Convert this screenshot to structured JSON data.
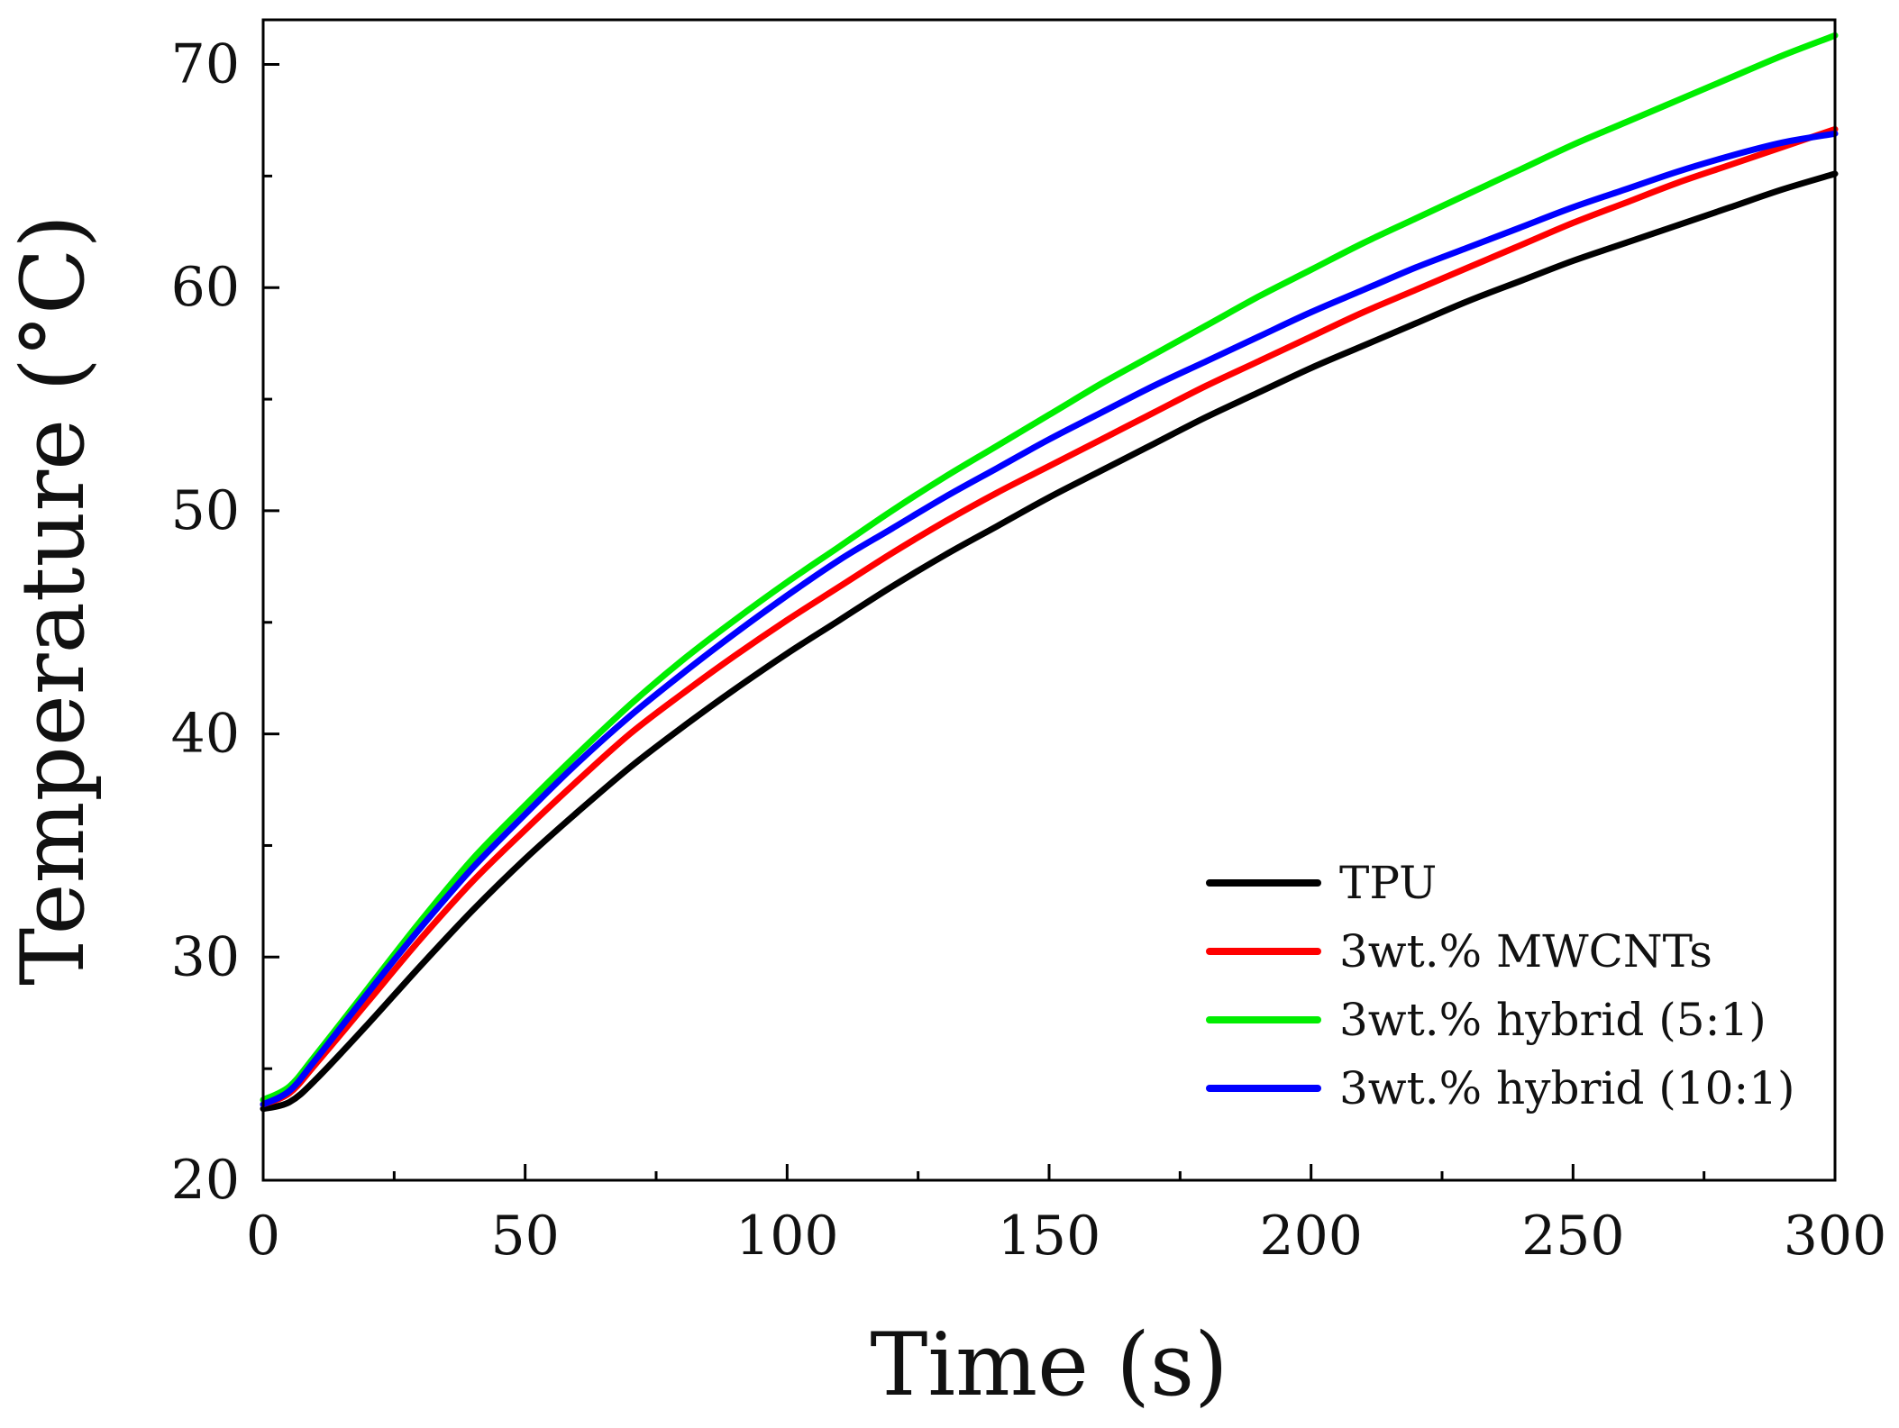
{
  "chart_data": {
    "type": "line",
    "title": "",
    "xlabel": "Time (s)",
    "ylabel": "Temperature (°C)",
    "xlim": [
      0,
      300
    ],
    "ylim": [
      20,
      72
    ],
    "xticks": [
      0,
      50,
      100,
      150,
      200,
      250,
      300
    ],
    "xtick_labels": [
      "0",
      "50",
      "100",
      "150",
      "200",
      "250",
      "300"
    ],
    "yticks": [
      20,
      30,
      40,
      50,
      60,
      70
    ],
    "ytick_labels": [
      "20",
      "30",
      "40",
      "50",
      "60",
      "70"
    ],
    "grid": false,
    "legend_position": "bottom-right",
    "x": [
      0,
      5,
      10,
      20,
      30,
      40,
      50,
      60,
      70,
      80,
      90,
      100,
      110,
      120,
      130,
      140,
      150,
      160,
      170,
      180,
      190,
      200,
      210,
      220,
      230,
      240,
      250,
      260,
      270,
      280,
      290,
      300
    ],
    "series": [
      {
        "name": "TPU",
        "color": "#000000",
        "values": [
          23.2,
          23.5,
          24.5,
          27.0,
          29.6,
          32.1,
          34.4,
          36.5,
          38.5,
          40.3,
          42.0,
          43.6,
          45.1,
          46.6,
          48.0,
          49.3,
          50.6,
          51.8,
          53.0,
          54.2,
          55.3,
          56.4,
          57.4,
          58.4,
          59.4,
          60.3,
          61.2,
          62.0,
          62.8,
          63.6,
          64.4,
          65.1
        ]
      },
      {
        "name": "3wt.% MWCNTs",
        "color": "#ff0000",
        "values": [
          23.4,
          23.9,
          25.2,
          28.0,
          30.8,
          33.4,
          35.7,
          37.9,
          40.0,
          41.8,
          43.5,
          45.1,
          46.6,
          48.1,
          49.5,
          50.8,
          52.0,
          53.2,
          54.4,
          55.6,
          56.7,
          57.8,
          58.9,
          59.9,
          60.9,
          61.9,
          62.9,
          63.8,
          64.7,
          65.5,
          66.3,
          67.1
        ]
      },
      {
        "name": "3wt.% hybrid (5:1)",
        "color": "#00ee00",
        "values": [
          23.6,
          24.2,
          25.6,
          28.6,
          31.6,
          34.4,
          36.8,
          39.1,
          41.3,
          43.3,
          45.1,
          46.8,
          48.4,
          50.0,
          51.5,
          52.9,
          54.3,
          55.7,
          57.0,
          58.3,
          59.6,
          60.8,
          62.0,
          63.1,
          64.2,
          65.3,
          66.4,
          67.4,
          68.4,
          69.4,
          70.4,
          71.3
        ]
      },
      {
        "name": "3wt.% hybrid (10:1)",
        "color": "#0000ff",
        "values": [
          23.4,
          24.0,
          25.4,
          28.4,
          31.3,
          34.0,
          36.4,
          38.7,
          40.8,
          42.7,
          44.5,
          46.2,
          47.8,
          49.2,
          50.6,
          51.9,
          53.2,
          54.4,
          55.6,
          56.7,
          57.8,
          58.9,
          59.9,
          60.9,
          61.8,
          62.7,
          63.6,
          64.4,
          65.2,
          65.9,
          66.5,
          66.9
        ]
      }
    ]
  }
}
